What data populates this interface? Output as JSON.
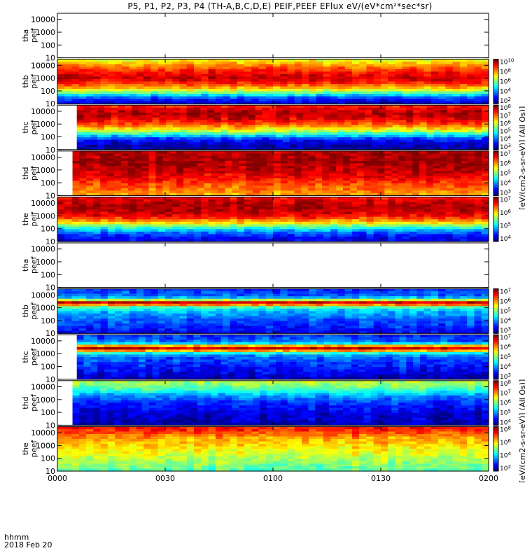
{
  "title": "P5, P1, P2, P3, P4 (TH-A,B,C,D,E) PEIF,PEEF EFlux eV/(eV*cm²*sec*sr)",
  "time_axis": {
    "ticks": [
      "0000",
      "0030",
      "0100",
      "0130",
      "0200"
    ],
    "unit_label": "hhmm",
    "date": "2018 Feb 20"
  },
  "side_labels": {
    "upper": "[eV/(cm2-s-sr-eV)] (All Qs)]",
    "lower": "[eV/(cm2-s-sr-eV)] (All Qs)]"
  },
  "chart_data": [
    {
      "type": "heatmap",
      "probe": "tha",
      "product": "peif",
      "ylabel_top": "tha",
      "ylabel_bottom": "peif",
      "y_ticks": [
        "10000",
        "1000",
        "100",
        "10"
      ],
      "y_scale": "log",
      "ylim": [
        10,
        30000
      ],
      "x_range": [
        "00:00",
        "02:00"
      ],
      "data": "none",
      "colorbar": false
    },
    {
      "type": "heatmap",
      "probe": "thb",
      "product": "peif",
      "ylabel_top": "thb",
      "ylabel_bottom": "peif",
      "y_ticks": [
        "10000",
        "1000",
        "100",
        "10"
      ],
      "y_scale": "log",
      "ylim": [
        10,
        30000
      ],
      "x_range": [
        "00:00",
        "02:00"
      ],
      "start_gap_fraction": 0,
      "energy_profile": [
        0.62,
        0.68,
        0.73,
        0.78,
        0.83,
        0.87,
        0.9,
        0.92,
        0.9,
        0.85,
        0.78,
        0.7,
        0.6,
        0.48,
        0.34,
        0.22,
        0.14,
        0.1
      ],
      "colorbar": true,
      "colorbar_ticks": [
        "10^10",
        "10^8",
        "10^6",
        "10^4",
        "10^2"
      ]
    },
    {
      "type": "heatmap",
      "probe": "thc",
      "product": "peif",
      "ylabel_top": "thc",
      "ylabel_bottom": "peif",
      "y_ticks": [
        "10000",
        "1000",
        "100",
        "10"
      ],
      "y_scale": "log",
      "ylim": [
        10,
        30000
      ],
      "x_range": [
        "00:05",
        "02:00"
      ],
      "start_gap_fraction": 0.045,
      "energy_profile": [
        0.86,
        0.9,
        0.93,
        0.95,
        0.93,
        0.9,
        0.86,
        0.8,
        0.74,
        0.66,
        0.56,
        0.44,
        0.32,
        0.2,
        0.12,
        0.08,
        0.05,
        0.04
      ],
      "colorbar": true,
      "colorbar_ticks": [
        "10^8",
        "10^7",
        "10^6",
        "10^5",
        "10^4",
        "10^3"
      ]
    },
    {
      "type": "heatmap",
      "probe": "thd",
      "product": "peif",
      "ylabel_top": "thd",
      "ylabel_bottom": "peif",
      "y_ticks": [
        "10000",
        "1000",
        "100",
        "10"
      ],
      "y_scale": "log",
      "ylim": [
        10,
        30000
      ],
      "x_range": [
        "00:05",
        "02:00"
      ],
      "start_gap_fraction": 0.035,
      "energy_profile": [
        0.94,
        0.95,
        0.95,
        0.96,
        0.96,
        0.95,
        0.94,
        0.93,
        0.92,
        0.9,
        0.88,
        0.86,
        0.83,
        0.8,
        0.78,
        0.76,
        0.74,
        0.72
      ],
      "colorbar": true,
      "colorbar_ticks": [
        "10^7",
        "10^6",
        "10^5",
        "10^4",
        "10^3"
      ]
    },
    {
      "type": "heatmap",
      "probe": "the",
      "product": "peif",
      "ylabel_top": "the",
      "ylabel_bottom": "peif",
      "y_ticks": [
        "10000",
        "1000",
        "100",
        "10"
      ],
      "y_scale": "log",
      "ylim": [
        10,
        30000
      ],
      "x_range": [
        "00:00",
        "02:00"
      ],
      "start_gap_fraction": 0,
      "energy_profile": [
        0.88,
        0.91,
        0.93,
        0.95,
        0.95,
        0.94,
        0.92,
        0.88,
        0.82,
        0.74,
        0.64,
        0.52,
        0.4,
        0.3,
        0.22,
        0.16,
        0.12,
        0.1
      ],
      "colorbar": true,
      "colorbar_ticks": [
        "10^7",
        "10^6",
        "10^5",
        "10^4"
      ]
    },
    {
      "type": "heatmap",
      "probe": "tha",
      "product": "peef",
      "ylabel_top": "tha",
      "ylabel_bottom": "peef",
      "y_ticks": [
        "10000",
        "1000",
        "100",
        "10"
      ],
      "y_scale": "log",
      "ylim": [
        10,
        30000
      ],
      "x_range": [
        "00:00",
        "02:00"
      ],
      "data": "none",
      "colorbar": false
    },
    {
      "type": "heatmap",
      "probe": "thb",
      "product": "peef",
      "ylabel_top": "thb",
      "ylabel_bottom": "peef",
      "y_ticks": [
        "10000",
        "1000",
        "100",
        "10"
      ],
      "y_scale": "log",
      "ylim": [
        10,
        30000
      ],
      "x_range": [
        "00:00",
        "02:00"
      ],
      "start_gap_fraction": 0,
      "energy_profile": [
        0.18,
        0.2,
        0.22,
        0.3,
        0.55,
        0.92,
        0.75,
        0.45,
        0.35,
        0.3,
        0.28,
        0.25,
        0.22,
        0.2,
        0.18,
        0.16,
        0.14,
        0.12
      ],
      "colorbar": true,
      "colorbar_ticks": [
        "10^7",
        "10^6",
        "10^5",
        "10^4",
        "10^3"
      ]
    },
    {
      "type": "heatmap",
      "probe": "thc",
      "product": "peef",
      "ylabel_top": "thc",
      "ylabel_bottom": "peef",
      "y_ticks": [
        "10000",
        "1000",
        "100",
        "10"
      ],
      "y_scale": "log",
      "ylim": [
        10,
        30000
      ],
      "x_range": [
        "00:05",
        "02:00"
      ],
      "start_gap_fraction": 0.045,
      "energy_profile": [
        0.18,
        0.2,
        0.22,
        0.35,
        0.7,
        0.93,
        0.72,
        0.4,
        0.28,
        0.22,
        0.2,
        0.18,
        0.16,
        0.14,
        0.12,
        0.1,
        0.08,
        0.06
      ],
      "colorbar": true,
      "colorbar_ticks": [
        "10^7",
        "10^6",
        "10^5",
        "10^4",
        "10^3"
      ]
    },
    {
      "type": "heatmap",
      "probe": "thd",
      "product": "peef",
      "ylabel_top": "thd",
      "ylabel_bottom": "peef",
      "y_ticks": [
        "10000",
        "1000",
        "100",
        "10"
      ],
      "y_scale": "log",
      "ylim": [
        10,
        30000
      ],
      "x_range": [
        "00:05",
        "02:00"
      ],
      "start_gap_fraction": 0.035,
      "energy_profile": [
        0.55,
        0.52,
        0.48,
        0.44,
        0.38,
        0.32,
        0.26,
        0.22,
        0.18,
        0.16,
        0.14,
        0.12,
        0.1,
        0.09,
        0.08,
        0.07,
        0.06,
        0.05
      ],
      "colorbar": true,
      "colorbar_ticks": [
        "10^8",
        "10^7",
        "10^6",
        "10^5",
        "10^4"
      ]
    },
    {
      "type": "heatmap",
      "probe": "the",
      "product": "peef",
      "ylabel_top": "the",
      "ylabel_bottom": "peef",
      "y_ticks": [
        "10000",
        "1000",
        "100",
        "10"
      ],
      "y_scale": "log",
      "ylim": [
        10,
        30000
      ],
      "x_range": [
        "00:00",
        "02:00"
      ],
      "start_gap_fraction": 0,
      "energy_profile": [
        0.86,
        0.84,
        0.8,
        0.76,
        0.72,
        0.7,
        0.68,
        0.66,
        0.64,
        0.62,
        0.6,
        0.58,
        0.56,
        0.54,
        0.52,
        0.5,
        0.48,
        0.46
      ],
      "colorbar": true,
      "colorbar_ticks": [
        "10^8",
        "10^6",
        "10^4",
        "10^2"
      ]
    }
  ]
}
